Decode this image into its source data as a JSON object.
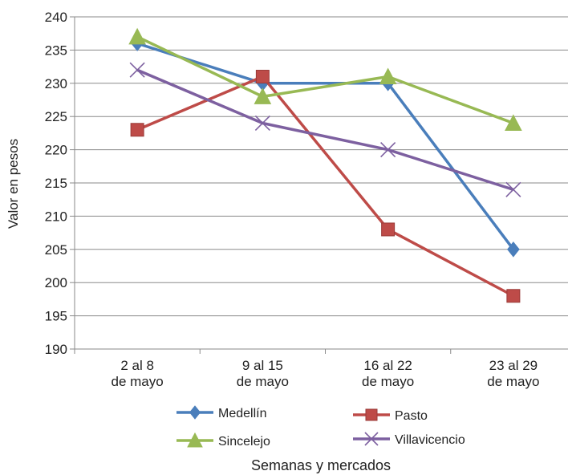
{
  "chart_data": {
    "type": "line",
    "title": "",
    "xlabel": "Semanas y mercados",
    "ylabel": "Valor en pesos",
    "ylim": [
      190,
      240
    ],
    "y_ticks": [
      190,
      195,
      200,
      205,
      210,
      215,
      220,
      225,
      230,
      235,
      240
    ],
    "grid": true,
    "legend_position": "bottom",
    "categories": [
      [
        "2 al 8",
        "de mayo"
      ],
      [
        "9 al 15",
        "de mayo"
      ],
      [
        "16 al 22",
        "de mayo"
      ],
      [
        "23 al 29",
        "de mayo"
      ]
    ],
    "series": [
      {
        "name": "Medellín",
        "values": [
          236,
          230,
          230,
          205
        ],
        "color": "#4a7ebb",
        "marker": "diamond"
      },
      {
        "name": "Pasto",
        "values": [
          223,
          231,
          208,
          198
        ],
        "color": "#be4b48",
        "marker": "square"
      },
      {
        "name": "Sincelejo",
        "values": [
          237,
          228,
          231,
          224
        ],
        "color": "#98b954",
        "marker": "triangle"
      },
      {
        "name": "Villavicencio",
        "values": [
          232,
          224,
          220,
          214
        ],
        "color": "#7d60a0",
        "marker": "x"
      }
    ]
  }
}
